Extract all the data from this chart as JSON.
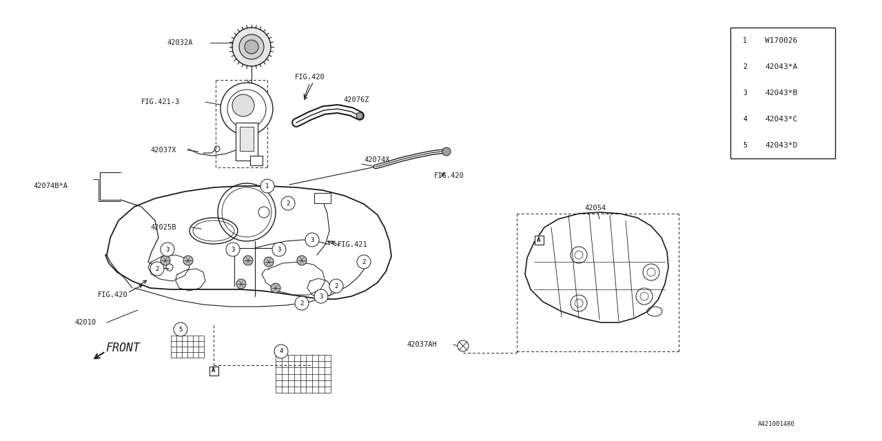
{
  "bg_color": "#ffffff",
  "line_color": "#1a1a1a",
  "fig_width": 12.8,
  "fig_height": 6.4,
  "legend_items": [
    {
      "num": "1",
      "label": "W170026"
    },
    {
      "num": "2",
      "label": "42043*A"
    },
    {
      "num": "3",
      "label": "42043*B"
    },
    {
      "num": "4",
      "label": "42043*C"
    },
    {
      "num": "5",
      "label": "42043*D"
    }
  ]
}
